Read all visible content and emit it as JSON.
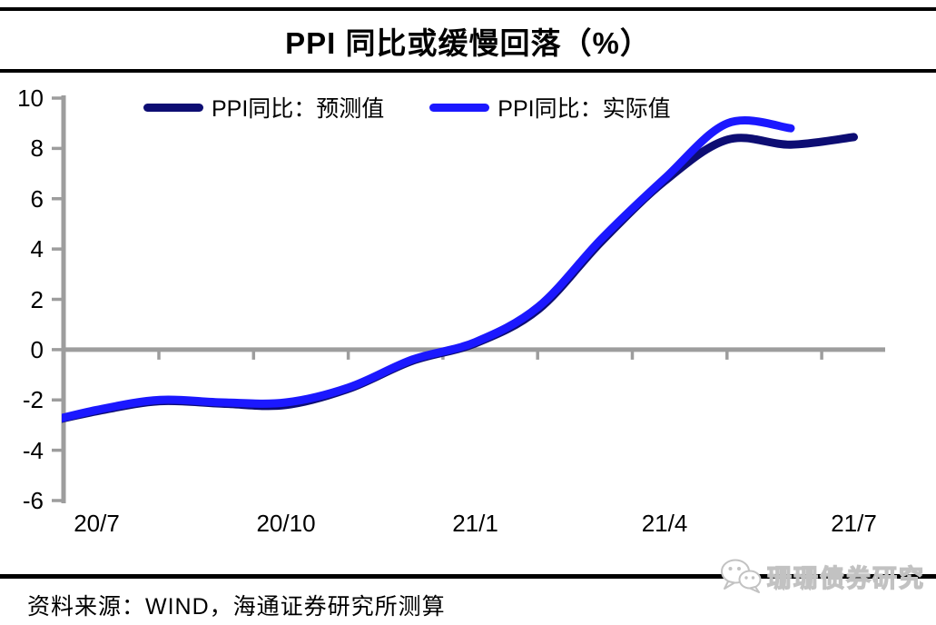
{
  "title": "PPI 同比或缓慢回落（%）",
  "footer": {
    "source": "资料来源：WIND，海通证券研究所测算"
  },
  "watermark": {
    "text": "珊珊债券研究",
    "icon": "wechat-icon"
  },
  "colors": {
    "forecast_navy": "#0d0d73",
    "actual_blue": "#1b18ff",
    "axis_gray": "#9d9d9d",
    "rule_black": "#000000",
    "watermark_gray": "#c2c2c2"
  },
  "chart_data": {
    "type": "line",
    "title": "PPI 同比或缓慢回落（%）",
    "x": [
      "20/6",
      "20/7",
      "20/8",
      "20/9",
      "20/10",
      "20/11",
      "20/12",
      "21/1",
      "21/2",
      "21/3",
      "21/4",
      "21/5",
      "21/6",
      "21/7"
    ],
    "series": [
      {
        "name": "PPI同比：预测值",
        "color": "#0d0d73",
        "values": [
          -3.0,
          -2.45,
          -2.05,
          -2.15,
          -2.2,
          -1.55,
          -0.45,
          0.25,
          1.6,
          4.3,
          6.7,
          8.35,
          8.15,
          8.45
        ]
      },
      {
        "name": "PPI同比：实际值",
        "color": "#1b18ff",
        "values": [
          -3.0,
          -2.4,
          -2.0,
          -2.1,
          -2.1,
          -1.5,
          -0.4,
          0.3,
          1.7,
          4.4,
          6.8,
          9.0,
          8.8,
          null
        ]
      }
    ],
    "ylim": [
      -6,
      10
    ],
    "ytick_step": 2,
    "ytick_labels": [
      "10",
      "8",
      "6",
      "4",
      "2",
      "0",
      "-2",
      "-4",
      "-6"
    ],
    "xtick_labels": [
      "20/7",
      "20/10",
      "21/1",
      "21/4",
      "21/7"
    ],
    "xtick_month_indices": [
      1,
      4,
      7,
      10,
      13
    ],
    "grid": false,
    "zero_axis": true,
    "legend_position": "top-center",
    "smooth": true
  }
}
